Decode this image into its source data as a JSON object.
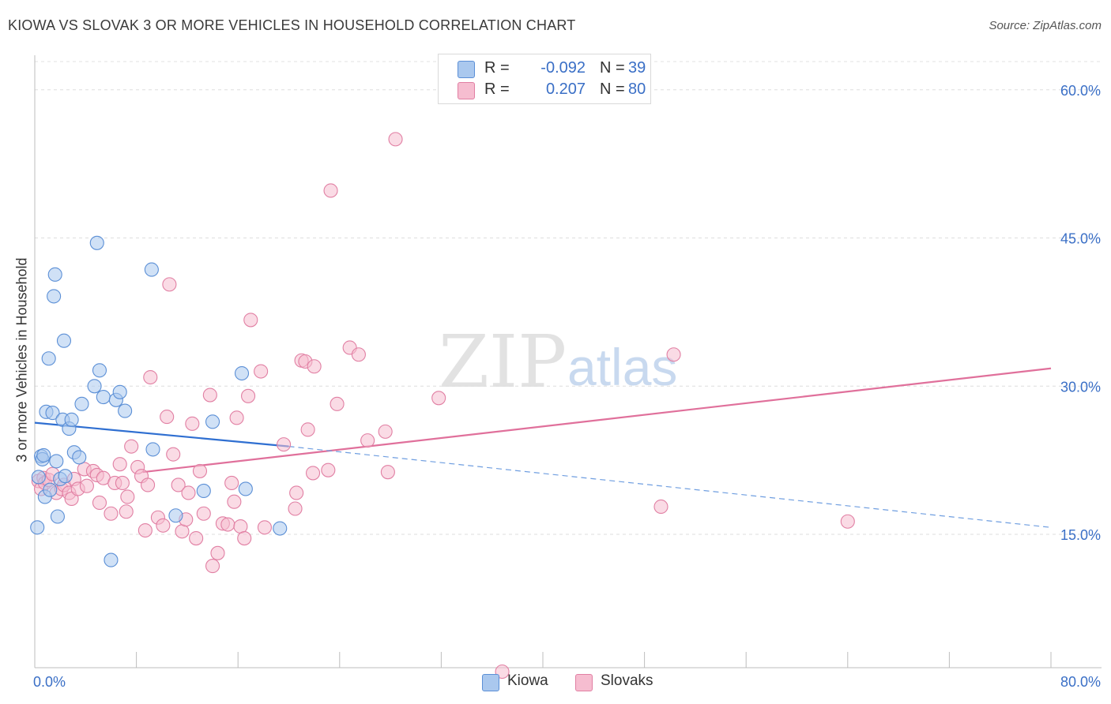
{
  "title": "KIOWA VS SLOVAK 3 OR MORE VEHICLES IN HOUSEHOLD CORRELATION CHART",
  "source": "Source: ZipAtlas.com",
  "watermark": {
    "zip": "ZIP",
    "atlas": "atlas"
  },
  "legend": {
    "rows": [
      {
        "r_label": "R =",
        "r_value": "-0.092",
        "n_label": "N =",
        "n_value": "39",
        "color": "#aac8ee",
        "stroke": "#5b8fd6"
      },
      {
        "r_label": "R =",
        "r_value": "0.207",
        "n_label": "N =",
        "n_value": "80",
        "color": "#f6bdd0",
        "stroke": "#e17fa3"
      }
    ]
  },
  "bottom_legend": [
    {
      "label": "Kiowa",
      "color": "#aac8ee",
      "stroke": "#5b8fd6"
    },
    {
      "label": "Slovaks",
      "color": "#f6bdd0",
      "stroke": "#e17fa3"
    }
  ],
  "chart_data": {
    "type": "scatter",
    "title": "KIOWA VS SLOVAK 3 OR MORE VEHICLES IN HOUSEHOLD CORRELATION CHART",
    "xlabel": "",
    "ylabel": "3 or more Vehicles in Household",
    "xlim": [
      0,
      80
    ],
    "ylim": [
      1.5,
      63.5
    ],
    "x_tick_labels": [
      "0.0%",
      "80.0%"
    ],
    "y_ticks": [
      15,
      30,
      45,
      60
    ],
    "y_tick_labels": [
      "15.0%",
      "30.0%",
      "45.0%",
      "60.0%"
    ],
    "grid": true,
    "legend_position": "top-center",
    "series": [
      {
        "name": "Kiowa",
        "color": "#5b8fd6",
        "fill": "#aac8ee",
        "trend": {
          "x0": 0,
          "y0": 26.3,
          "x1": 20,
          "y1": 23.9,
          "dashed_to_x": 80,
          "dashed_to_y": 15.7
        },
        "points": [
          [
            0.2,
            15.7
          ],
          [
            0.3,
            20.8
          ],
          [
            0.5,
            22.9
          ],
          [
            0.6,
            22.6
          ],
          [
            0.7,
            23.0
          ],
          [
            0.8,
            18.8
          ],
          [
            0.9,
            27.4
          ],
          [
            1.1,
            32.8
          ],
          [
            1.2,
            19.5
          ],
          [
            1.4,
            27.3
          ],
          [
            1.6,
            41.3
          ],
          [
            1.5,
            39.1
          ],
          [
            1.7,
            22.4
          ],
          [
            1.8,
            16.8
          ],
          [
            2.0,
            20.6
          ],
          [
            2.2,
            26.6
          ],
          [
            2.3,
            34.6
          ],
          [
            2.4,
            20.9
          ],
          [
            2.7,
            25.7
          ],
          [
            2.9,
            26.6
          ],
          [
            3.1,
            23.3
          ],
          [
            3.5,
            22.8
          ],
          [
            3.7,
            28.2
          ],
          [
            4.7,
            30.0
          ],
          [
            5.1,
            31.6
          ],
          [
            5.4,
            28.9
          ],
          [
            6.0,
            12.4
          ],
          [
            6.4,
            28.6
          ],
          [
            6.7,
            29.4
          ],
          [
            7.1,
            27.5
          ],
          [
            4.9,
            44.5
          ],
          [
            9.2,
            41.8
          ],
          [
            9.3,
            23.6
          ],
          [
            11.1,
            16.9
          ],
          [
            13.3,
            19.4
          ],
          [
            14.0,
            26.4
          ],
          [
            16.3,
            31.3
          ],
          [
            16.6,
            19.6
          ],
          [
            19.3,
            15.6
          ]
        ]
      },
      {
        "name": "Slovaks",
        "color": "#e17fa3",
        "fill": "#f6bdd0",
        "trend": {
          "x0": 8.5,
          "y0": 21.3,
          "x1": 80,
          "y1": 31.8
        },
        "points": [
          [
            0.3,
            20.4
          ],
          [
            0.5,
            19.6
          ],
          [
            0.7,
            20.7
          ],
          [
            0.8,
            20.2
          ],
          [
            1.1,
            20.5
          ],
          [
            1.4,
            21.1
          ],
          [
            1.7,
            19.2
          ],
          [
            2.1,
            19.6
          ],
          [
            2.3,
            20.0
          ],
          [
            2.7,
            19.2
          ],
          [
            2.9,
            18.6
          ],
          [
            3.1,
            20.6
          ],
          [
            3.4,
            19.6
          ],
          [
            3.9,
            21.6
          ],
          [
            4.1,
            19.9
          ],
          [
            4.6,
            21.4
          ],
          [
            4.9,
            21.0
          ],
          [
            5.1,
            18.2
          ],
          [
            5.4,
            20.7
          ],
          [
            6.0,
            17.1
          ],
          [
            6.3,
            20.2
          ],
          [
            6.7,
            22.1
          ],
          [
            6.9,
            20.2
          ],
          [
            7.2,
            17.3
          ],
          [
            7.3,
            18.8
          ],
          [
            7.6,
            23.9
          ],
          [
            8.1,
            21.8
          ],
          [
            8.4,
            20.9
          ],
          [
            8.7,
            15.4
          ],
          [
            8.9,
            20.0
          ],
          [
            9.1,
            30.9
          ],
          [
            9.7,
            16.7
          ],
          [
            10.1,
            15.9
          ],
          [
            10.4,
            26.9
          ],
          [
            10.6,
            40.3
          ],
          [
            10.9,
            23.1
          ],
          [
            11.3,
            20.0
          ],
          [
            11.6,
            15.3
          ],
          [
            11.9,
            16.5
          ],
          [
            12.1,
            19.2
          ],
          [
            12.4,
            26.2
          ],
          [
            12.7,
            14.6
          ],
          [
            13.0,
            21.4
          ],
          [
            13.3,
            17.1
          ],
          [
            13.8,
            29.1
          ],
          [
            14.0,
            11.8
          ],
          [
            14.4,
            13.1
          ],
          [
            14.8,
            16.1
          ],
          [
            15.2,
            16.0
          ],
          [
            15.5,
            20.2
          ],
          [
            15.7,
            18.3
          ],
          [
            15.9,
            26.8
          ],
          [
            16.2,
            15.8
          ],
          [
            16.5,
            14.6
          ],
          [
            16.8,
            29.0
          ],
          [
            17.0,
            36.7
          ],
          [
            17.8,
            31.5
          ],
          [
            18.1,
            15.7
          ],
          [
            19.6,
            24.1
          ],
          [
            20.5,
            17.6
          ],
          [
            20.6,
            19.2
          ],
          [
            21.0,
            32.6
          ],
          [
            21.3,
            32.5
          ],
          [
            21.5,
            25.6
          ],
          [
            21.9,
            21.2
          ],
          [
            22.0,
            32.0
          ],
          [
            23.1,
            21.5
          ],
          [
            23.3,
            49.8
          ],
          [
            23.8,
            28.2
          ],
          [
            24.8,
            33.9
          ],
          [
            25.5,
            33.2
          ],
          [
            26.2,
            24.5
          ],
          [
            27.6,
            25.4
          ],
          [
            27.8,
            21.3
          ],
          [
            28.4,
            55.0
          ],
          [
            31.8,
            28.8
          ],
          [
            36.8,
            1.1
          ],
          [
            49.3,
            17.8
          ],
          [
            50.3,
            33.2
          ],
          [
            64.0,
            16.3
          ]
        ]
      }
    ]
  }
}
